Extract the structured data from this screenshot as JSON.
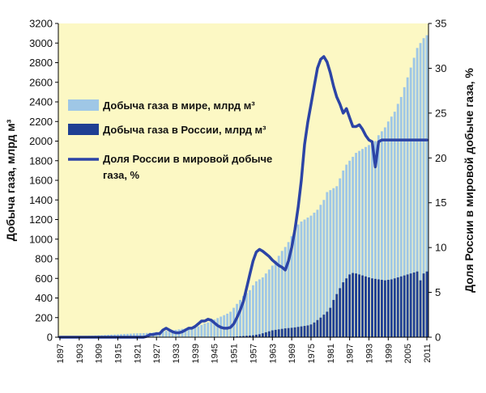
{
  "colors": {
    "plot_background": "#fcf8c4",
    "world_bars": "#9fc7e6",
    "russia_bars": "#1f3f93",
    "share_line": "#2c44a6"
  },
  "chart_data": {
    "type": "bar",
    "ylabel": "Добыча газа, млрд м³",
    "y2label": "Доля России в мировой добыче газа, %",
    "ylim": [
      0,
      3200
    ],
    "y2lim": [
      0,
      35
    ],
    "yticks": [
      "0",
      "200",
      "400",
      "600",
      "800",
      "1000",
      "1200",
      "1400",
      "1600",
      "1800",
      "2000",
      "2200",
      "2400",
      "2600",
      "2800",
      "3000",
      "3200"
    ],
    "y2ticks": [
      "0",
      "5",
      "10",
      "15",
      "20",
      "25",
      "30",
      "35"
    ],
    "xticks": [
      "1897",
      "1903",
      "1909",
      "1915",
      "1921",
      "1927",
      "1933",
      "1939",
      "1945",
      "1951",
      "1957",
      "1963",
      "1969",
      "1975",
      "1981",
      "1987",
      "1993",
      "1999",
      "2005",
      "2011"
    ],
    "x": [
      1897,
      1898,
      1899,
      1900,
      1901,
      1902,
      1903,
      1904,
      1905,
      1906,
      1907,
      1908,
      1909,
      1910,
      1911,
      1912,
      1913,
      1914,
      1915,
      1916,
      1917,
      1918,
      1919,
      1920,
      1921,
      1922,
      1923,
      1924,
      1925,
      1926,
      1927,
      1928,
      1929,
      1930,
      1931,
      1932,
      1933,
      1934,
      1935,
      1936,
      1937,
      1938,
      1939,
      1940,
      1941,
      1942,
      1943,
      1944,
      1945,
      1946,
      1947,
      1948,
      1949,
      1950,
      1951,
      1952,
      1953,
      1954,
      1955,
      1956,
      1957,
      1958,
      1959,
      1960,
      1961,
      1962,
      1963,
      1964,
      1965,
      1966,
      1967,
      1968,
      1969,
      1970,
      1971,
      1972,
      1973,
      1974,
      1975,
      1976,
      1977,
      1978,
      1979,
      1980,
      1981,
      1982,
      1983,
      1984,
      1985,
      1986,
      1987,
      1988,
      1989,
      1990,
      1991,
      1992,
      1993,
      1994,
      1995,
      1996,
      1997,
      1998,
      1999,
      2000,
      2001,
      2002,
      2003,
      2004,
      2005,
      2006,
      2007,
      2008,
      2009,
      2010,
      2011
    ],
    "series": [
      {
        "name": "Добыча газа в мире, млрд м³",
        "kind": "bar",
        "values": [
          5,
          6,
          7,
          8,
          9,
          10,
          11,
          12,
          13,
          14,
          15,
          17,
          19,
          20,
          22,
          24,
          26,
          27,
          29,
          31,
          33,
          34,
          36,
          38,
          39,
          40,
          41,
          43,
          46,
          49,
          52,
          55,
          59,
          65,
          70,
          72,
          75,
          80,
          85,
          90,
          95,
          97,
          100,
          110,
          125,
          140,
          150,
          165,
          180,
          195,
          210,
          225,
          240,
          260,
          300,
          340,
          380,
          420,
          450,
          480,
          530,
          570,
          590,
          610,
          650,
          690,
          730,
          780,
          830,
          880,
          920,
          970,
          1030,
          1100,
          1150,
          1180,
          1200,
          1220,
          1240,
          1270,
          1300,
          1350,
          1400,
          1480,
          1500,
          1520,
          1540,
          1620,
          1700,
          1760,
          1800,
          1840,
          1880,
          1900,
          1920,
          1940,
          1960,
          1980,
          2000,
          2060,
          2100,
          2140,
          2200,
          2250,
          2300,
          2380,
          2450,
          2550,
          2650,
          2750,
          2850,
          2950,
          3000,
          3050,
          3080
        ]
      },
      {
        "name": "Добыча газа в России, млрд м³",
        "kind": "bar",
        "values": [
          0,
          0,
          0,
          0,
          0,
          0,
          0,
          0,
          0,
          0,
          0,
          0,
          0,
          0,
          0,
          0,
          0,
          0,
          0,
          0,
          0,
          0,
          0,
          0,
          0,
          0,
          0,
          0,
          0,
          0,
          0,
          0,
          0,
          0,
          0,
          0,
          0,
          0,
          0,
          0,
          0,
          0,
          0,
          0,
          0,
          0,
          0,
          0,
          0,
          0,
          0,
          0,
          0,
          5,
          6,
          8,
          10,
          12,
          14,
          17,
          20,
          25,
          30,
          40,
          50,
          60,
          70,
          75,
          80,
          85,
          90,
          93,
          96,
          100,
          105,
          110,
          115,
          120,
          130,
          150,
          175,
          200,
          230,
          260,
          300,
          380,
          440,
          500,
          560,
          600,
          640,
          655,
          650,
          640,
          630,
          620,
          610,
          600,
          595,
          590,
          585,
          580,
          585,
          590,
          600,
          610,
          620,
          630,
          640,
          650,
          660,
          670,
          580,
          650,
          670
        ]
      },
      {
        "name": "Доля России в мировой добыче газа, %",
        "kind": "line",
        "axis": "right",
        "values": [
          0,
          0,
          0,
          0,
          0,
          0,
          0,
          0,
          0,
          0,
          0,
          0,
          0,
          0,
          0,
          0,
          0,
          0,
          0,
          0,
          0,
          0,
          0,
          0,
          0,
          0,
          0,
          0.1,
          0.3,
          0.3,
          0.4,
          0.4,
          0.8,
          1.0,
          0.8,
          0.6,
          0.5,
          0.5,
          0.6,
          0.8,
          1.0,
          1.0,
          1.2,
          1.5,
          1.8,
          1.8,
          2.0,
          1.9,
          1.6,
          1.3,
          1.1,
          1.0,
          1.0,
          1.1,
          1.5,
          2.2,
          3.0,
          4.0,
          5.5,
          7.0,
          8.5,
          9.5,
          9.8,
          9.6,
          9.3,
          9.0,
          8.6,
          8.3,
          8.0,
          7.8,
          7.5,
          8.5,
          10.0,
          12.0,
          14.5,
          17.5,
          21.5,
          24.0,
          26.0,
          28.0,
          30.0,
          31.0,
          31.3,
          30.7,
          29.5,
          28.0,
          26.8,
          26.0,
          25.0,
          25.5,
          24.5,
          23.5,
          23.5,
          23.7,
          23.2,
          22.5,
          22.0,
          21.8,
          19.0,
          21.8,
          22.0,
          22,
          22,
          22,
          22,
          22,
          22,
          22,
          22,
          22,
          22,
          22,
          22,
          22,
          22
        ]
      }
    ],
    "legend": "top-left inside plot",
    "grid": false
  }
}
